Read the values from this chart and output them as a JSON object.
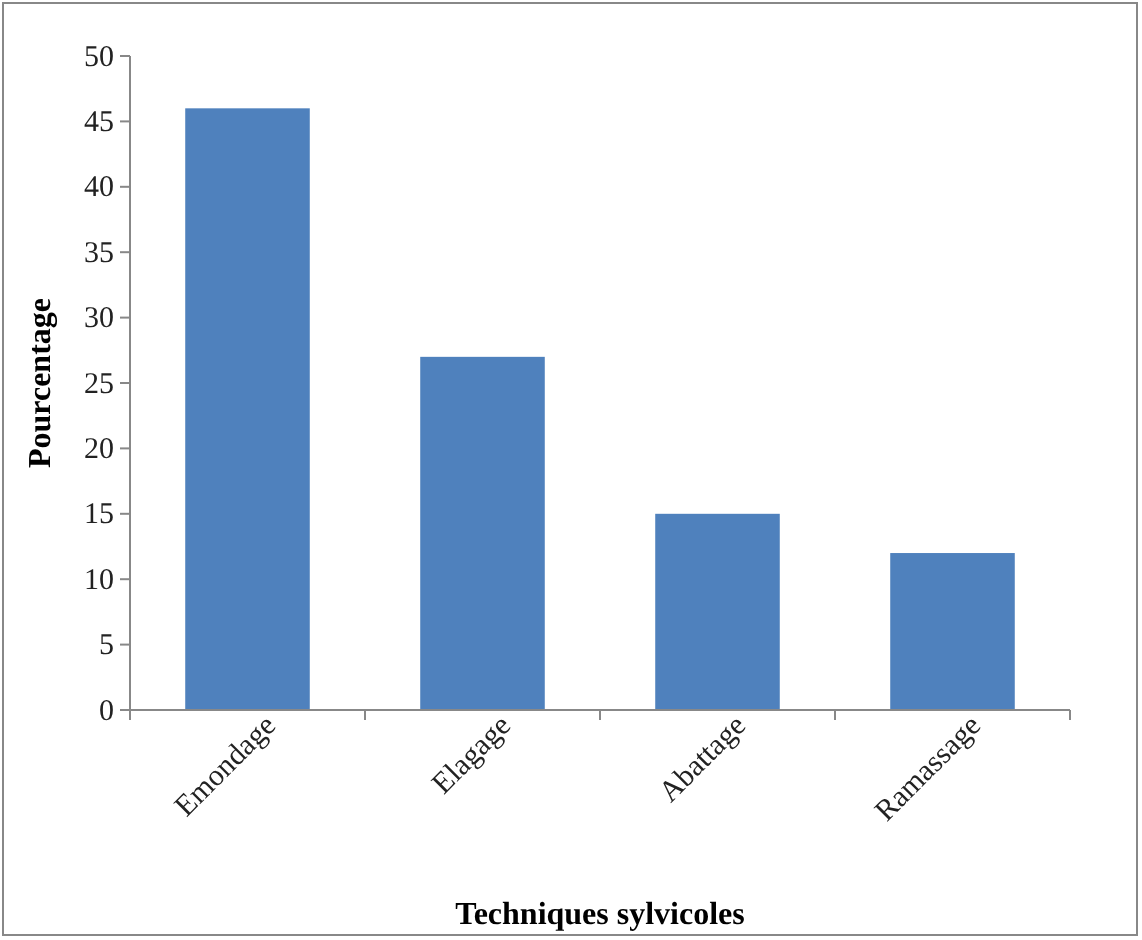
{
  "chart_data": {
    "type": "bar",
    "xlabel": "Techniques sylvicoles",
    "ylabel": "Pourcentage",
    "categories": [
      "Emondage",
      "Elagage",
      "Abattage",
      "Ramassage"
    ],
    "values": [
      46,
      27,
      15,
      12
    ],
    "color": "#4f81bd",
    "ylim": [
      0,
      50
    ],
    "yticks": [
      0,
      5,
      10,
      15,
      20,
      25,
      30,
      35,
      40,
      45,
      50
    ],
    "grid": false
  }
}
